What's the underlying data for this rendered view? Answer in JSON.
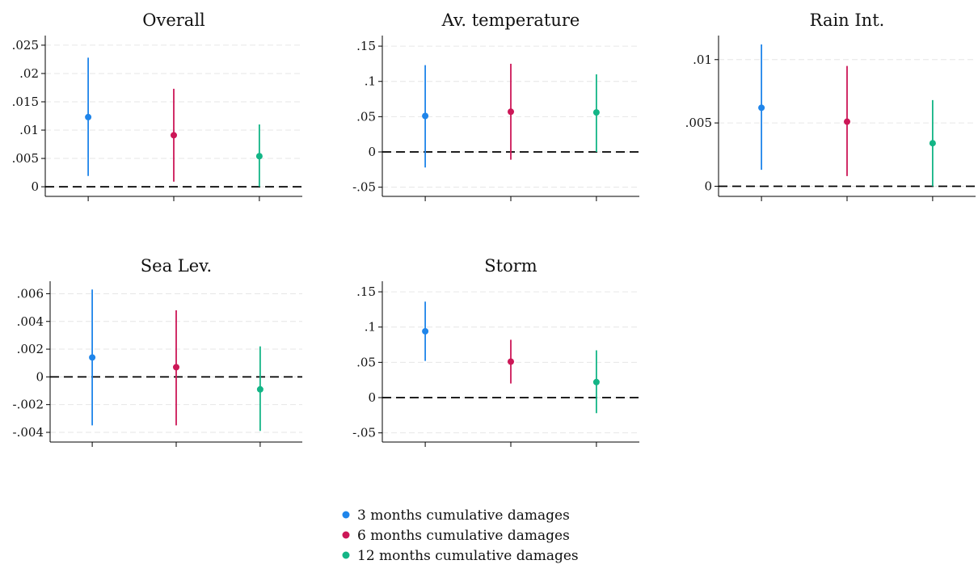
{
  "colors": {
    "series_3m": "#1f85ea",
    "series_6m": "#cc1757",
    "series_12m": "#13b586",
    "axis": "#000000",
    "grid": "#e6e6e6"
  },
  "legend": {
    "items": [
      {
        "label": "3 months cumulative damages",
        "color": "#1f85ea"
      },
      {
        "label": "6 months cumulative damages",
        "color": "#cc1757"
      },
      {
        "label": "12 months cumulative damages",
        "color": "#13b586"
      }
    ]
  },
  "chart_data": [
    {
      "type": "scatter",
      "title": "Overall",
      "ylim": [
        -0.0017,
        0.0267
      ],
      "yticks": [
        0,
        0.005,
        0.01,
        0.015,
        0.02,
        0.025
      ],
      "ytick_labels": [
        "0",
        ".005",
        ".01",
        ".015",
        ".02",
        ".025"
      ],
      "reference_line": 0,
      "grid": true,
      "series": [
        {
          "name": "3 months cumulative damages",
          "point": 0.0123,
          "ci": [
            0.0019,
            0.0228
          ]
        },
        {
          "name": "6 months cumulative damages",
          "point": 0.0091,
          "ci": [
            0.0009,
            0.0173
          ]
        },
        {
          "name": "12 months cumulative damages",
          "point": 0.0054,
          "ci": [
            0.0,
            0.011
          ]
        }
      ]
    },
    {
      "type": "scatter",
      "title": "Av. temperature",
      "ylim": [
        -0.063,
        0.165
      ],
      "yticks": [
        -0.05,
        0,
        0.05,
        0.1,
        0.15
      ],
      "ytick_labels": [
        "-.05",
        "0",
        ".05",
        ".1",
        ".15"
      ],
      "reference_line": 0,
      "grid": true,
      "series": [
        {
          "name": "3 months cumulative damages",
          "point": 0.051,
          "ci": [
            -0.022,
            0.123
          ]
        },
        {
          "name": "6 months cumulative damages",
          "point": 0.057,
          "ci": [
            -0.011,
            0.125
          ]
        },
        {
          "name": "12 months cumulative damages",
          "point": 0.056,
          "ci": [
            0.0,
            0.11
          ]
        }
      ]
    },
    {
      "type": "scatter",
      "title": "Rain Int.",
      "ylim": [
        -0.0008,
        0.0119
      ],
      "yticks": [
        0,
        0.005,
        0.01
      ],
      "ytick_labels": [
        "0",
        ".005",
        ".01"
      ],
      "reference_line": 0,
      "grid": true,
      "series": [
        {
          "name": "3 months cumulative damages",
          "point": 0.0062,
          "ci": [
            0.0013,
            0.0112
          ]
        },
        {
          "name": "6 months cumulative damages",
          "point": 0.0051,
          "ci": [
            0.0008,
            0.0095
          ]
        },
        {
          "name": "12 months cumulative damages",
          "point": 0.0034,
          "ci": [
            0.0,
            0.0068
          ]
        }
      ]
    },
    {
      "type": "scatter",
      "title": "Sea Lev.",
      "ylim": [
        -0.0047,
        0.0069
      ],
      "yticks": [
        -0.004,
        -0.002,
        0,
        0.002,
        0.004,
        0.006
      ],
      "ytick_labels": [
        "-.004",
        "-.002",
        "0",
        ".002",
        ".004",
        ".006"
      ],
      "reference_line": 0,
      "grid": true,
      "series": [
        {
          "name": "3 months cumulative damages",
          "point": 0.0014,
          "ci": [
            -0.0035,
            0.0063
          ]
        },
        {
          "name": "6 months cumulative damages",
          "point": 0.0007,
          "ci": [
            -0.0035,
            0.0048
          ]
        },
        {
          "name": "12 months cumulative damages",
          "point": -0.0009,
          "ci": [
            -0.0039,
            0.0022
          ]
        }
      ]
    },
    {
      "type": "scatter",
      "title": "Storm",
      "ylim": [
        -0.063,
        0.165
      ],
      "yticks": [
        -0.05,
        0,
        0.05,
        0.1,
        0.15
      ],
      "ytick_labels": [
        "-.05",
        "0",
        ".05",
        ".1",
        ".15"
      ],
      "reference_line": 0,
      "grid": true,
      "series": [
        {
          "name": "3 months cumulative damages",
          "point": 0.094,
          "ci": [
            0.052,
            0.136
          ]
        },
        {
          "name": "6 months cumulative damages",
          "point": 0.051,
          "ci": [
            0.02,
            0.082
          ]
        },
        {
          "name": "12 months cumulative damages",
          "point": 0.022,
          "ci": [
            -0.022,
            0.067
          ]
        }
      ]
    }
  ]
}
